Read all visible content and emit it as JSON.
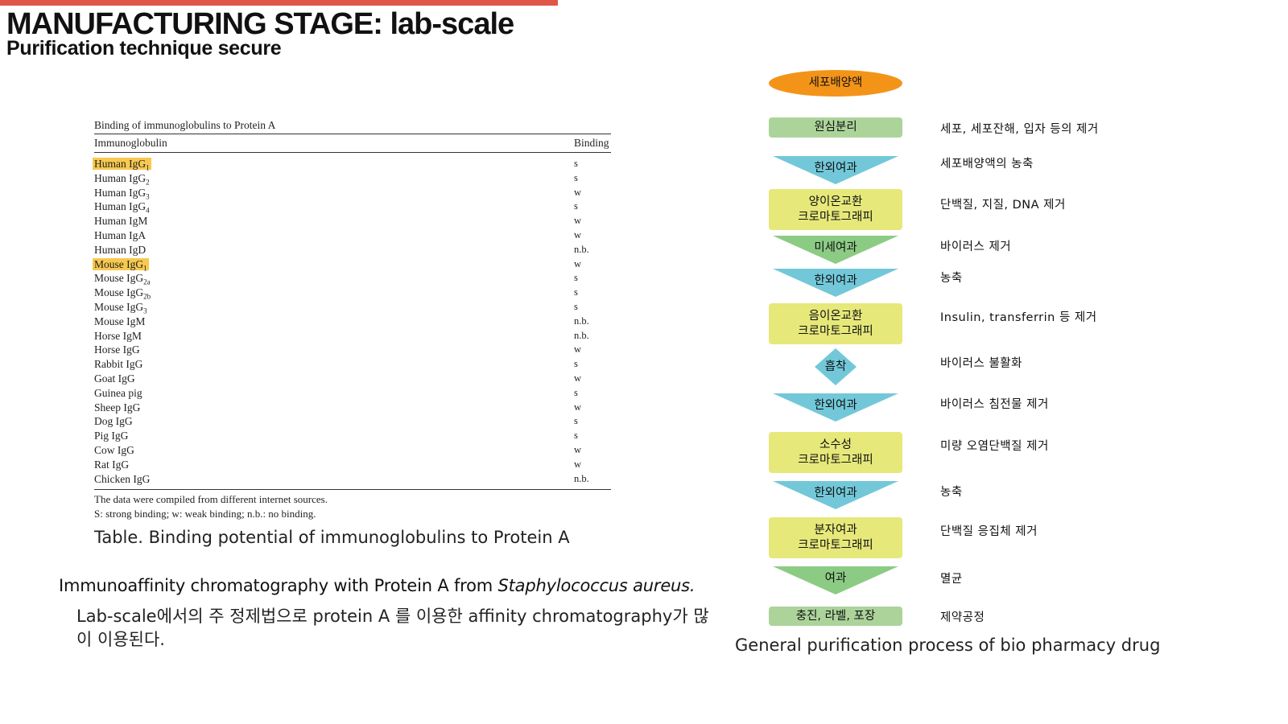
{
  "header": {
    "title": "MANUFACTURING STAGE: lab-scale",
    "subtitle": "Purification technique secure"
  },
  "table": {
    "caption": "Binding of immunoglobulins to Protein A",
    "col_name": "Immunoglobulin",
    "col_binding": "Binding",
    "rows": [
      {
        "name": "Human IgG",
        "sub": "1",
        "binding": "s",
        "highlight": true
      },
      {
        "name": "Human IgG",
        "sub": "2",
        "binding": "s"
      },
      {
        "name": "Human IgG",
        "sub": "3",
        "binding": "w"
      },
      {
        "name": "Human IgG",
        "sub": "4",
        "binding": "s"
      },
      {
        "name": "Human IgM",
        "binding": "w"
      },
      {
        "name": "Human IgA",
        "binding": "w"
      },
      {
        "name": "Human IgD",
        "binding": "n.b."
      },
      {
        "name": "Mouse IgG",
        "sub": "1",
        "binding": "w",
        "highlight": true
      },
      {
        "name": "Mouse IgG",
        "sub": "2a",
        "binding": "s"
      },
      {
        "name": "Mouse IgG",
        "sub": "2b",
        "binding": "s"
      },
      {
        "name": "Mouse IgG",
        "sub": "3",
        "binding": "s"
      },
      {
        "name": "Mouse IgM",
        "binding": "n.b."
      },
      {
        "name": "Horse IgM",
        "binding": "n.b."
      },
      {
        "name": "Horse IgG",
        "binding": "w"
      },
      {
        "name": "Rabbit IgG",
        "binding": "s"
      },
      {
        "name": "Goat IgG",
        "binding": "w"
      },
      {
        "name": "Guinea pig",
        "binding": "s"
      },
      {
        "name": "Sheep IgG",
        "binding": "w"
      },
      {
        "name": "Dog IgG",
        "binding": "s"
      },
      {
        "name": "Pig IgG",
        "binding": "s"
      },
      {
        "name": "Cow IgG",
        "binding": "w"
      },
      {
        "name": "Rat IgG",
        "binding": "w"
      },
      {
        "name": "Chicken IgG",
        "binding": "n.b."
      }
    ],
    "note1": "The data were compiled from different internet sources.",
    "note2": "S: strong binding; w: weak binding; n.b.: no binding.",
    "highlight_color": "#f7c94e"
  },
  "table_caption": "Table. Binding potential of immunoglobulins to Protein A",
  "immunoaffinity": {
    "heading": "Immunoaffinity chromatography with Protein A from ",
    "heading_italic": "Staphylococcus aureus.",
    "body": "Lab-scale에서의 주 정제법으로 protein A 를 이용한 affinity chromatography가 많이 이용된다."
  },
  "flow": {
    "caption": "General purification process of bio pharmacy drug",
    "colors": {
      "start": "#f39419",
      "green_rect": "#acd49a",
      "yellow_rect": "#e6e87a",
      "teal": "#72c8d8",
      "green_tri": "#8ccb84"
    },
    "steps": [
      {
        "label": "세포배양액",
        "shape": "ellipse",
        "color": "start",
        "desc": ""
      },
      {
        "label": "원심분리",
        "shape": "rect",
        "color": "green_rect",
        "desc": "세포, 세포잔해, 입자 등의 제거"
      },
      {
        "label": "한외여과",
        "shape": "triangle",
        "color": "teal",
        "desc": "세포배양액의 농축"
      },
      {
        "label": "양이온교환\n크로마토그래피",
        "shape": "rect",
        "color": "yellow_rect",
        "desc": "단백질, 지질, DNA 제거"
      },
      {
        "label": "미세여과",
        "shape": "triangle",
        "color": "green_tri",
        "desc": "바이러스 제거"
      },
      {
        "label": "한외여과",
        "shape": "triangle",
        "color": "teal",
        "desc": "농축"
      },
      {
        "label": "음이온교환\n크로마토그래피",
        "shape": "rect",
        "color": "yellow_rect",
        "desc": "Insulin, transferrin 등 제거"
      },
      {
        "label": "흡착",
        "shape": "diamond",
        "color": "teal",
        "desc": "바이러스 불활화"
      },
      {
        "label": "한외여과",
        "shape": "triangle",
        "color": "teal",
        "desc": "바이러스 침전물 제거"
      },
      {
        "label": "소수성\n크로마토그래피",
        "shape": "rect",
        "color": "yellow_rect",
        "desc": "미량 오염단백질 제거"
      },
      {
        "label": "한외여과",
        "shape": "triangle",
        "color": "teal",
        "desc": "농축"
      },
      {
        "label": "분자여과\n크로마토그래피",
        "shape": "rect",
        "color": "yellow_rect",
        "desc": "단백질 응집체 제거"
      },
      {
        "label": "여과",
        "shape": "triangle",
        "color": "green_tri",
        "desc": "멸균"
      },
      {
        "label": "충진, 라벨, 포장",
        "shape": "rect",
        "color": "green_rect",
        "desc": "제약공정"
      }
    ]
  }
}
